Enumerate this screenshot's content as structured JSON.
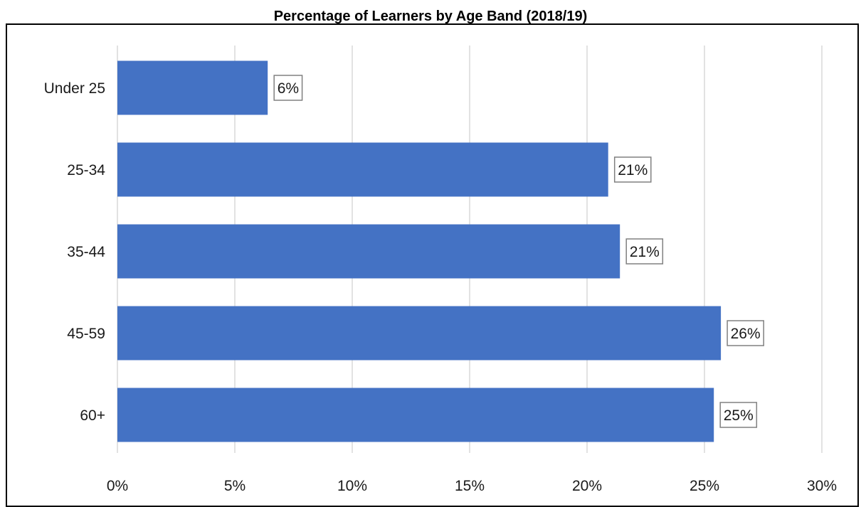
{
  "chart_data": {
    "type": "bar",
    "orientation": "horizontal",
    "title": "Percentage of Learners by Age Band (2018/19)",
    "categories": [
      "Under 25",
      "25-34",
      "35-44",
      "45-59",
      "60+"
    ],
    "values": [
      6.4,
      20.9,
      21.4,
      25.7,
      25.4
    ],
    "data_labels": [
      "6%",
      "21%",
      "21%",
      "26%",
      "25%"
    ],
    "x_ticks": [
      "0%",
      "5%",
      "10%",
      "15%",
      "20%",
      "25%",
      "30%"
    ],
    "xlim": [
      0,
      30
    ],
    "xlabel": "",
    "ylabel": "",
    "grid": "vertical",
    "legend": "none",
    "bar_color": "#4472C4"
  }
}
